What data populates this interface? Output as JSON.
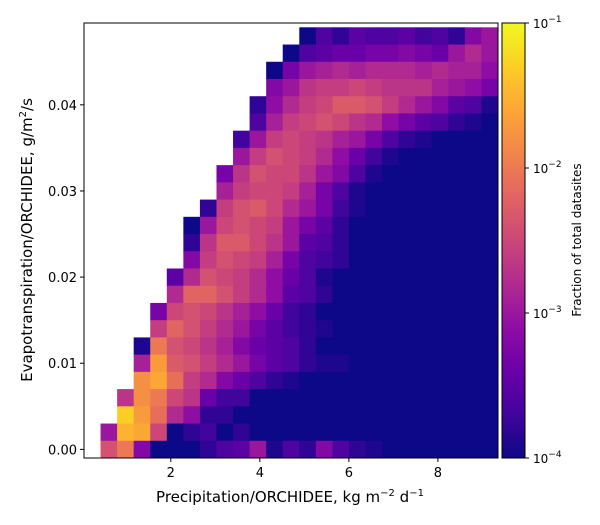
{
  "chart_data": {
    "type": "heatmap",
    "title": "",
    "xlabel_main": "Precipitation/ORCHIDEE,  kg m",
    "xlabel_sup1": "−2",
    "xlabel_mid": " d",
    "xlabel_sup2": "−1",
    "ylabel_main": "Evapotranspiration/ORCHIDEE,  g/m",
    "ylabel_sup": "2",
    "ylabel_tail": "/s",
    "xlim": [
      0.05,
      9.35
    ],
    "ylim": [
      -0.001,
      0.0495
    ],
    "x_ticks": [
      2,
      4,
      6,
      8
    ],
    "x_tick_labels": [
      "2",
      "4",
      "6",
      "8"
    ],
    "y_ticks": [
      0.0,
      0.01,
      0.02,
      0.03,
      0.04
    ],
    "y_tick_labels": [
      "0.00",
      "0.01",
      "0.02",
      "0.03",
      "0.04"
    ],
    "colorbar": {
      "label": "Fraction of total datasites",
      "scale": "log",
      "range": [
        0.0001,
        0.1
      ],
      "colormap": "plasma",
      "ticks": [
        {
          "base": "10",
          "exp": "−1",
          "value": 0.1
        },
        {
          "base": "10",
          "exp": "−2",
          "value": 0.01
        },
        {
          "base": "10",
          "exp": "−3",
          "value": 0.001
        },
        {
          "base": "10",
          "exp": "−4",
          "value": 0.0001
        }
      ]
    },
    "bins": {
      "x_edges_start": 0.05,
      "x_bin_width": 0.372,
      "nx": 25,
      "y_edges_start": -0.001,
      "y_bin_width": 0.002,
      "ny": 25,
      "rows_top_to_bottom_log10_fraction": [
        [
          null,
          null,
          null,
          null,
          null,
          null,
          null,
          null,
          null,
          null,
          null,
          null,
          null,
          -4.0,
          -3.6,
          -3.8,
          -3.5,
          -3.6,
          -3.6,
          -3.5,
          -3.7,
          -3.6,
          -3.8,
          -3.2,
          -3.0
        ],
        [
          null,
          null,
          null,
          null,
          null,
          null,
          null,
          null,
          null,
          null,
          null,
          null,
          -4.0,
          -3.6,
          -3.5,
          -3.4,
          -3.4,
          -3.3,
          -3.3,
          -3.2,
          -3.3,
          -3.4,
          -3.0,
          -2.8,
          -3.0
        ],
        [
          null,
          null,
          null,
          null,
          null,
          null,
          null,
          null,
          null,
          null,
          null,
          -4.0,
          -3.3,
          -3.0,
          -2.9,
          -2.8,
          -2.9,
          -2.8,
          -2.8,
          -2.8,
          -2.9,
          -2.8,
          -2.9,
          -2.9,
          -3.1
        ],
        [
          null,
          null,
          null,
          null,
          null,
          null,
          null,
          null,
          null,
          null,
          null,
          -3.2,
          -3.0,
          -2.7,
          -2.6,
          -2.6,
          -2.5,
          -2.6,
          -2.7,
          -2.7,
          -2.7,
          -2.9,
          -3.0,
          -3.1,
          -3.3
        ],
        [
          null,
          null,
          null,
          null,
          null,
          null,
          null,
          null,
          null,
          null,
          -3.8,
          -3.1,
          -2.8,
          -2.6,
          -2.5,
          -2.3,
          -2.3,
          -2.4,
          -2.6,
          -2.8,
          -3.0,
          -3.2,
          -3.5,
          -3.6,
          -3.9
        ],
        [
          null,
          null,
          null,
          null,
          null,
          null,
          null,
          null,
          null,
          null,
          -3.6,
          -2.9,
          -2.6,
          -2.5,
          -2.4,
          -2.5,
          -2.7,
          -2.8,
          -3.1,
          -3.3,
          -3.5,
          -3.6,
          -3.8,
          -3.9,
          -4.0
        ],
        [
          null,
          null,
          null,
          null,
          null,
          null,
          null,
          null,
          null,
          -3.7,
          -3.0,
          -2.6,
          -2.5,
          -2.6,
          -2.7,
          -2.9,
          -3.0,
          -3.3,
          -3.6,
          -3.8,
          -3.9,
          -4.0,
          -4.0,
          -4.0,
          -4.0
        ],
        [
          null,
          null,
          null,
          null,
          null,
          null,
          null,
          null,
          null,
          -3.0,
          -2.6,
          -2.4,
          -2.5,
          -2.6,
          -2.8,
          -3.1,
          -3.4,
          -3.7,
          -3.9,
          -4.0,
          -4.0,
          -4.0,
          -4.0,
          -4.0,
          -4.0
        ],
        [
          null,
          null,
          null,
          null,
          null,
          null,
          null,
          null,
          -3.3,
          -2.7,
          -2.4,
          -2.5,
          -2.5,
          -2.7,
          -3.0,
          -3.2,
          -3.6,
          -3.9,
          -4.0,
          -4.0,
          -4.0,
          -4.0,
          -4.0,
          -4.0,
          -4.0
        ],
        [
          null,
          null,
          null,
          null,
          null,
          null,
          null,
          null,
          -2.9,
          -2.6,
          -2.5,
          -2.5,
          -2.6,
          -2.9,
          -3.3,
          -3.6,
          -3.9,
          -4.0,
          -4.0,
          -4.0,
          -4.0,
          -4.0,
          -4.0,
          -4.0,
          -4.0
        ],
        [
          null,
          null,
          null,
          null,
          null,
          null,
          null,
          -3.8,
          -2.6,
          -2.4,
          -2.3,
          -2.5,
          -2.8,
          -3.0,
          -3.3,
          -3.7,
          -3.9,
          -4.0,
          -4.0,
          -4.0,
          -4.0,
          -4.0,
          -4.0,
          -4.0,
          -4.0
        ],
        [
          null,
          null,
          null,
          null,
          null,
          null,
          -4.0,
          -3.0,
          -2.5,
          -2.4,
          -2.5,
          -2.6,
          -3.0,
          -3.3,
          -3.5,
          -3.8,
          -4.0,
          -4.0,
          -4.0,
          -4.0,
          -4.0,
          -4.0,
          -4.0,
          -4.0,
          -4.0
        ],
        [
          null,
          null,
          null,
          null,
          null,
          null,
          -3.8,
          -2.7,
          -2.3,
          -2.3,
          -2.5,
          -2.7,
          -3.0,
          -3.5,
          -3.6,
          -3.8,
          -4.0,
          -4.0,
          -4.0,
          -4.0,
          -4.0,
          -4.0,
          -4.0,
          -4.0,
          -4.0
        ],
        [
          null,
          null,
          null,
          null,
          null,
          null,
          -3.2,
          -2.6,
          -2.4,
          -2.5,
          -2.6,
          -2.9,
          -3.3,
          -3.6,
          -3.7,
          -3.8,
          -4.0,
          -4.0,
          -4.0,
          -4.0,
          -4.0,
          -4.0,
          -4.0,
          -4.0,
          -4.0
        ],
        [
          null,
          null,
          null,
          null,
          null,
          -3.5,
          -2.8,
          -2.4,
          -2.5,
          -2.6,
          -2.8,
          -3.1,
          -3.4,
          -3.6,
          -3.9,
          -4.0,
          -4.0,
          -4.0,
          -4.0,
          -4.0,
          -4.0,
          -4.0,
          -4.0,
          -4.0,
          -4.0
        ],
        [
          null,
          null,
          null,
          null,
          null,
          -2.8,
          -2.2,
          -2.2,
          -2.4,
          -2.6,
          -2.8,
          -3.1,
          -3.5,
          -3.6,
          -3.8,
          -4.0,
          -4.0,
          -4.0,
          -4.0,
          -4.0,
          -4.0,
          -4.0,
          -4.0,
          -4.0,
          -4.0
        ],
        [
          null,
          null,
          null,
          null,
          -3.3,
          -2.5,
          -2.4,
          -2.5,
          -2.7,
          -2.9,
          -3.1,
          -3.4,
          -3.7,
          -3.8,
          -4.0,
          -4.0,
          -4.0,
          -4.0,
          -4.0,
          -4.0,
          -4.0,
          -4.0,
          -4.0,
          -4.0,
          -4.0
        ],
        [
          null,
          null,
          null,
          null,
          -2.6,
          -2.2,
          -2.4,
          -2.6,
          -2.8,
          -3.0,
          -3.3,
          -3.5,
          -3.7,
          -3.8,
          -3.9,
          -4.0,
          -4.0,
          -4.0,
          -4.0,
          -4.0,
          -4.0,
          -4.0,
          -4.0,
          -4.0,
          -4.0
        ],
        [
          null,
          null,
          null,
          -3.9,
          -2.0,
          -2.4,
          -2.5,
          -2.7,
          -2.9,
          -3.2,
          -3.4,
          -3.5,
          -3.6,
          -3.8,
          -4.0,
          -4.0,
          -4.0,
          -4.0,
          -4.0,
          -4.0,
          -4.0,
          -4.0,
          -4.0,
          -4.0,
          -4.0
        ],
        [
          null,
          null,
          null,
          -2.9,
          -1.7,
          -2.3,
          -2.4,
          -2.6,
          -2.8,
          -3.0,
          -3.3,
          -3.5,
          -3.6,
          -3.8,
          -3.9,
          -3.9,
          -4.0,
          -4.0,
          -4.0,
          -4.0,
          -4.0,
          -4.0,
          -4.0,
          -4.0,
          -4.0
        ],
        [
          null,
          null,
          null,
          -1.8,
          -1.6,
          -2.1,
          -2.6,
          -2.8,
          -3.2,
          -3.4,
          -3.6,
          -3.8,
          -3.9,
          -4.0,
          -4.0,
          -4.0,
          -4.0,
          -4.0,
          -4.0,
          -4.0,
          -4.0,
          -4.0,
          -4.0,
          -4.0,
          -4.0
        ],
        [
          null,
          null,
          -2.7,
          -1.8,
          -2.0,
          -2.5,
          -2.7,
          -3.4,
          -3.7,
          -3.7,
          -4.0,
          -4.0,
          -4.0,
          -4.0,
          -4.0,
          -4.0,
          -4.0,
          -4.0,
          -4.0,
          -4.0,
          -4.0,
          -4.0,
          -4.0,
          -4.0,
          -4.0
        ],
        [
          null,
          null,
          -1.3,
          -1.7,
          -2.1,
          -2.8,
          -3.1,
          -3.8,
          -3.8,
          -4.0,
          -4.0,
          -4.0,
          -4.0,
          -4.0,
          -4.0,
          -4.0,
          -4.0,
          -4.0,
          -4.0,
          -4.0,
          -4.0,
          -4.0,
          -4.0,
          -4.0,
          -4.0
        ],
        [
          null,
          -3.0,
          -1.5,
          -1.6,
          -2.5,
          -4.0,
          -3.8,
          -3.7,
          -4.0,
          -3.8,
          -4.0,
          -4.0,
          -4.0,
          -4.0,
          -4.0,
          -4.0,
          -4.0,
          -4.0,
          -4.0,
          -4.0,
          -4.0,
          -4.0,
          -4.0,
          -4.0,
          -4.0
        ],
        [
          null,
          -2.4,
          -2.0,
          -3.2,
          -4.0,
          -4.0,
          -4.0,
          -3.8,
          -3.6,
          -3.5,
          -3.0,
          -3.9,
          -3.6,
          -3.8,
          -3.2,
          -3.6,
          -3.8,
          -3.9,
          -4.0,
          -4.0,
          -4.0,
          -4.0,
          -4.0,
          -4.0,
          -4.0
        ]
      ]
    }
  }
}
